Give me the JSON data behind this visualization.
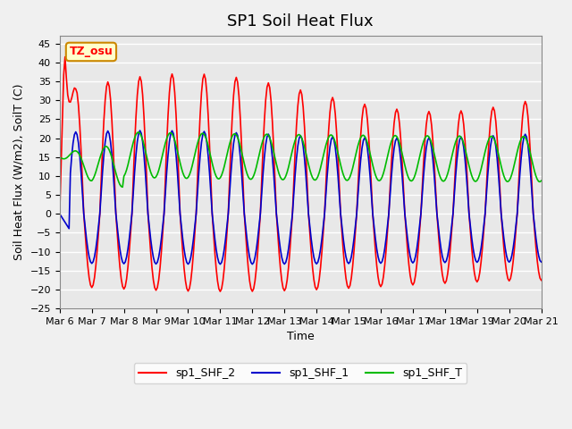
{
  "title": "SP1 Soil Heat Flux",
  "xlabel": "Time",
  "ylabel": "Soil Heat Flux (W/m2), SoilT (C)",
  "ylim": [
    -25,
    47
  ],
  "yticks": [
    -25,
    -20,
    -15,
    -10,
    -5,
    0,
    5,
    10,
    15,
    20,
    25,
    30,
    35,
    40,
    45
  ],
  "x_start_day": 6,
  "x_end_day": 21,
  "x_tick_days": [
    6,
    7,
    8,
    9,
    10,
    11,
    12,
    13,
    14,
    15,
    16,
    17,
    18,
    19,
    20,
    21
  ],
  "color_shf2": "#ff0000",
  "color_shf1": "#0000cc",
  "color_shft": "#00bb00",
  "legend_labels": [
    "sp1_SHF_2",
    "sp1_SHF_1",
    "sp1_SHF_T"
  ],
  "annotation_text": "TZ_osu",
  "annotation_bg": "#ffffcc",
  "annotation_border": "#cc8800",
  "bg_color": "#e8e8e8",
  "grid_color": "#ffffff",
  "title_fontsize": 13,
  "label_fontsize": 9,
  "tick_fontsize": 8
}
